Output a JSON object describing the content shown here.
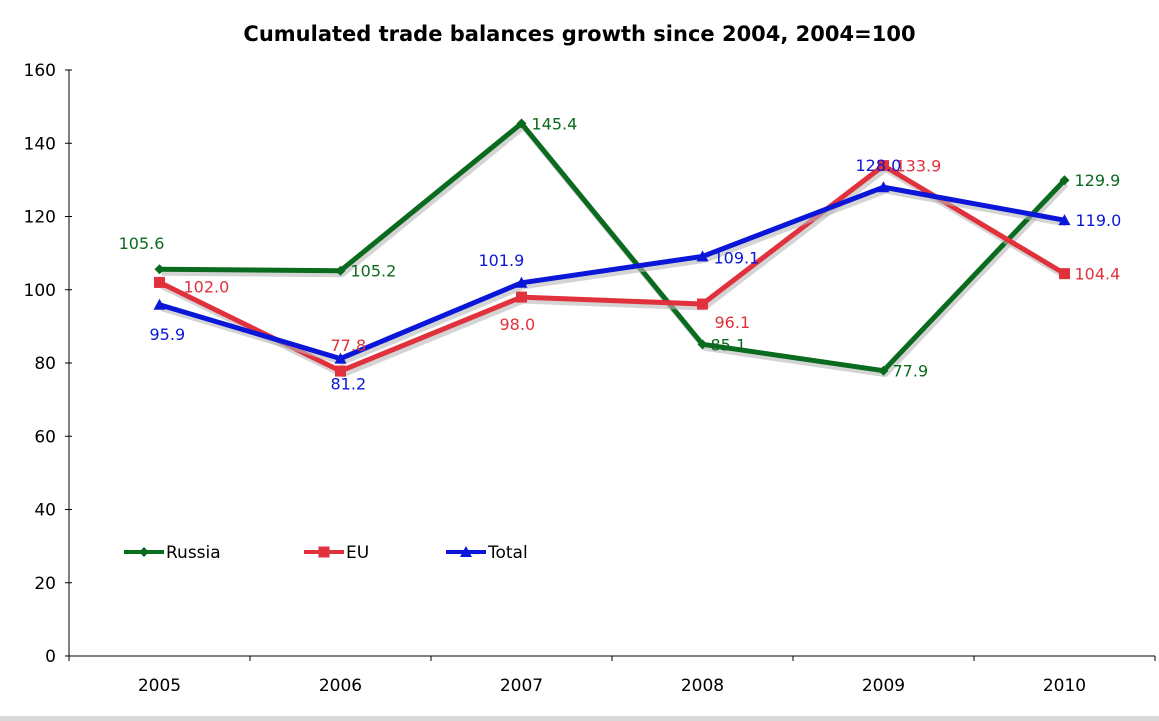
{
  "chart_data": {
    "type": "line",
    "title": "Cumulated trade balances growth since 2004, 2004=100",
    "xlabel": "",
    "ylabel": "",
    "categories": [
      "2005",
      "2006",
      "2007",
      "2008",
      "2009",
      "2010"
    ],
    "ylim": [
      0,
      160
    ],
    "yticks": [
      0,
      20,
      40,
      60,
      80,
      100,
      120,
      140,
      160
    ],
    "grid": false,
    "legend_position": "bottom-left",
    "series": [
      {
        "name": "Russia",
        "color": "#0a6b1e",
        "marker": "diamond",
        "values": [
          105.6,
          105.2,
          145.4,
          85.1,
          77.9,
          129.9
        ],
        "labels": [
          "105.6",
          "105.2",
          "145.4",
          "85.1",
          "77.9",
          "129.9"
        ]
      },
      {
        "name": "EU",
        "color": "#e0313c",
        "marker": "square",
        "values": [
          102.0,
          77.8,
          98.0,
          96.1,
          133.9,
          104.4
        ],
        "labels": [
          "102.0",
          "77.8",
          "98.0",
          "96.1",
          "133.9",
          "104.4"
        ]
      },
      {
        "name": "Total",
        "color": "#0a16d8",
        "marker": "triangle",
        "values": [
          95.9,
          81.2,
          101.9,
          109.1,
          128.0,
          119.0
        ],
        "labels": [
          "95.9",
          "81.2",
          "101.9",
          "109.1",
          "128.0",
          "119.0"
        ]
      }
    ]
  }
}
